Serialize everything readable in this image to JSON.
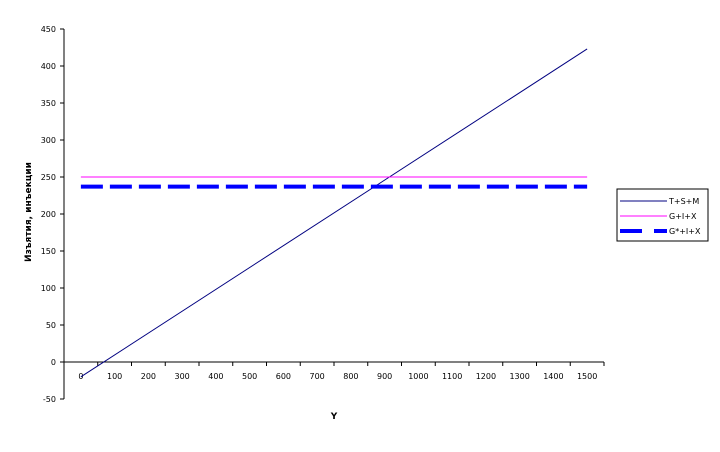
{
  "chart_data": {
    "type": "line",
    "xlabel": "Y",
    "ylabel": "Изъятия, инъекции",
    "categories": [
      "0",
      "100",
      "200",
      "300",
      "400",
      "500",
      "600",
      "700",
      "800",
      "900",
      "1000",
      "1100",
      "1200",
      "1300",
      "1400",
      "1500"
    ],
    "ylim": [
      -50,
      450
    ],
    "yticks": [
      -50,
      0,
      50,
      100,
      150,
      200,
      250,
      300,
      350,
      400,
      450
    ],
    "grid": false,
    "legend_position": "right",
    "series": [
      {
        "name": "T+S+M",
        "x": [
          0,
          1500
        ],
        "y": [
          -20,
          423
        ],
        "color": "#000080",
        "style": "solid"
      },
      {
        "name": "G+I+X",
        "x": [
          0,
          1500
        ],
        "y": [
          250,
          250
        ],
        "color": "#ff00ff",
        "style": "solid"
      },
      {
        "name": "G*+I+X",
        "x": [
          0,
          1500
        ],
        "y": [
          237,
          237
        ],
        "color": "#0000ff",
        "style": "dashed"
      }
    ]
  }
}
